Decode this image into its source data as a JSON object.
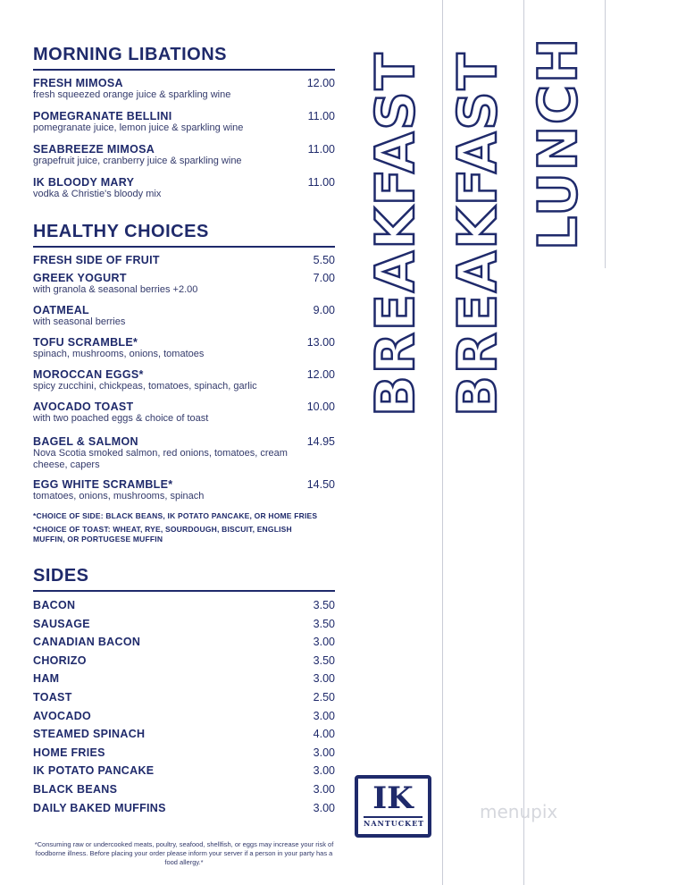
{
  "libations": {
    "title": "MORNING LIBATIONS",
    "items": [
      {
        "name": "FRESH MIMOSA",
        "price": "12.00",
        "desc": "fresh squeezed orange juice & sparkling wine"
      },
      {
        "name": "POMEGRANATE BELLINI",
        "price": "11.00",
        "desc": "pomegranate juice, lemon juice & sparkling wine"
      },
      {
        "name": "SEABREEZE MIMOSA",
        "price": "11.00",
        "desc": "grapefruit juice, cranberry juice & sparkling wine"
      },
      {
        "name": "IK BLOODY MARY",
        "price": "11.00",
        "desc": "vodka & Christie's bloody mix"
      }
    ]
  },
  "healthy": {
    "title": "HEALTHY CHOICES",
    "items": [
      {
        "name": "FRESH SIDE OF FRUIT",
        "price": "5.50",
        "desc": ""
      },
      {
        "name": "GREEK YOGURT",
        "price": "7.00",
        "desc": "with granola & seasonal berries +2.00"
      },
      {
        "name": "OATMEAL",
        "price": "9.00",
        "desc": "with seasonal berries"
      },
      {
        "name": "TOFU SCRAMBLE*",
        "price": "13.00",
        "desc": "spinach, mushrooms, onions, tomatoes"
      },
      {
        "name": "MOROCCAN EGGS*",
        "price": "12.00",
        "desc": "spicy zucchini, chickpeas, tomatoes, spinach, garlic"
      },
      {
        "name": "AVOCADO TOAST",
        "price": "10.00",
        "desc": "with two poached eggs & choice of toast"
      },
      {
        "name": "BAGEL & SALMON",
        "price": "14.95",
        "desc": "Nova Scotia smoked salmon, red onions, tomatoes, cream cheese, capers"
      },
      {
        "name": "EGG WHITE SCRAMBLE*",
        "price": "14.50",
        "desc": "tomatoes, onions, mushrooms, spinach"
      }
    ],
    "note_side": "*CHOICE OF SIDE: BLACK BEANS, IK POTATO PANCAKE, OR HOME FRIES",
    "note_toast": "*CHOICE OF TOAST: WHEAT, RYE, SOURDOUGH, BISCUIT, ENGLISH MUFFIN, OR PORTUGESE MUFFIN"
  },
  "sides": {
    "title": "SIDES",
    "items": [
      {
        "name": "BACON",
        "price": "3.50"
      },
      {
        "name": "SAUSAGE",
        "price": "3.50"
      },
      {
        "name": "CANADIAN BACON",
        "price": "3.00"
      },
      {
        "name": "CHORIZO",
        "price": "3.50"
      },
      {
        "name": "HAM",
        "price": "3.00"
      },
      {
        "name": "TOAST",
        "price": "2.50"
      },
      {
        "name": "AVOCADO",
        "price": "3.00"
      },
      {
        "name": "STEAMED SPINACH",
        "price": "4.00"
      },
      {
        "name": "HOME FRIES",
        "price": "3.00"
      },
      {
        "name": "IK POTATO PANCAKE",
        "price": "3.00"
      },
      {
        "name": "BLACK BEANS",
        "price": "3.00"
      },
      {
        "name": "DAILY BAKED MUFFINS",
        "price": "3.00"
      }
    ]
  },
  "footer": "*Consuming raw or undercooked meats, poultry, seafood, shellfish, or eggs may increase your risk of foodborne illness. Before placing your order please inform your server if a person in your party has a food allergy.*",
  "tabs": [
    "BREAKFAST",
    "BREAKFAST",
    "LUNCH"
  ],
  "logo": {
    "big": "IK",
    "small": "NANTUCKET"
  },
  "watermark": "menupix"
}
